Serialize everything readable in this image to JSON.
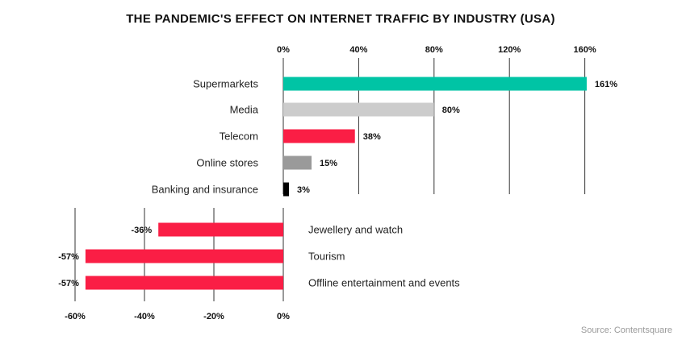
{
  "chart_data": [
    {
      "type": "bar",
      "orientation": "horizontal",
      "title": "THE PANDEMIC'S EFFECT ON INTERNET TRAFFIC BY INDUSTRY (USA)",
      "categories": [
        "Supermarkets",
        "Media",
        "Telecom",
        "Online stores",
        "Banking and insurance"
      ],
      "values": [
        161,
        80,
        38,
        15,
        3
      ],
      "data_labels": [
        "161%",
        "80%",
        "38%",
        "15%",
        "3%"
      ],
      "colors": [
        "#00c4a5",
        "#cccccc",
        "#fa1e45",
        "#9a9a9a",
        "#000000"
      ],
      "xlim": [
        0,
        160
      ],
      "x_ticks": [
        "0%",
        "40%",
        "80%",
        "120%",
        "160%"
      ],
      "x_tick_values": [
        0,
        40,
        80,
        120,
        160
      ],
      "axis_position": "top",
      "grid": true
    },
    {
      "type": "bar",
      "orientation": "horizontal",
      "categories": [
        "Jewellery and watch",
        "Tourism",
        "Offline entertainment and events"
      ],
      "values": [
        -36,
        -57,
        -57
      ],
      "data_labels": [
        "-36%",
        "-57%",
        "-57%"
      ],
      "colors": [
        "#fa1e45",
        "#fa1e45",
        "#fa1e45"
      ],
      "xlim": [
        -60,
        0
      ],
      "x_ticks": [
        "-60%",
        "-40%",
        "-20%",
        "0%"
      ],
      "x_tick_values": [
        -60,
        -40,
        -20,
        0
      ],
      "axis_position": "bottom",
      "grid": true
    }
  ],
  "source": "Source: Contentsquare"
}
